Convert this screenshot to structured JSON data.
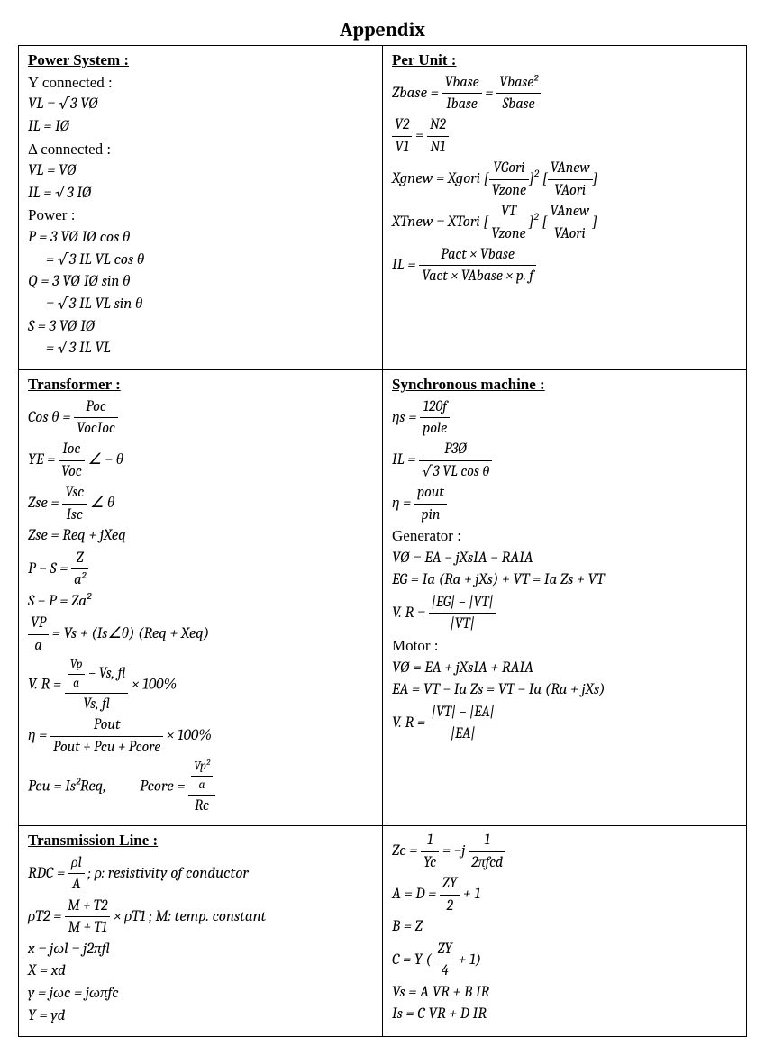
{
  "title": "Appendix",
  "sections": {
    "power_system": {
      "heading": "Power System :",
      "y_label": "Y connected :",
      "y_vl": "VL = √3 VØ",
      "y_il": "IL = IØ",
      "d_label": "Δ connected :",
      "d_vl": "VL  = VØ",
      "d_il": "IL = √3 IØ",
      "power_label": "Power :",
      "p1": "P = 3 VØ IØ  cos θ",
      "p2": "= √3 IL VL cos θ",
      "q1": "Q = 3 VØ IØ  sin θ",
      "q2": "= √3 IL VL sin θ",
      "s1": "S = 3 VØ IØ",
      "s2": "= √3 IL VL"
    },
    "per_unit": {
      "heading": "Per Unit :",
      "zbase_l": "Zbase =",
      "zb_n1": "Vbase",
      "zb_d1": "Ibase",
      "zb_n2": "Vbase²",
      "zb_d2": "Sbase",
      "v2v1_l": "",
      "v2": "V2",
      "v1": "V1",
      "n2": "N2",
      "n1": "N1",
      "xg_l": "Xgnew = Xgori",
      "xg_b1n": "VGori",
      "xg_b1d": "Vzone",
      "xg_b2n": "VAnew",
      "xg_b2d": "VAori",
      "xt_l": "XTnew = XTori",
      "xt_b1n": "VT",
      "xt_b1d": "Vzone",
      "xt_b2n": "VAnew",
      "xt_b2d": "VAori",
      "il_l": "IL =",
      "il_n": "Pact  × Vbase",
      "il_d": "Vact  × VAbase  × p. f"
    },
    "transformer": {
      "heading": "Transformer :",
      "cos_l": "Cos θ =",
      "cos_n": "Poc",
      "cos_d": "VocIoc",
      "ye_l": "YE =",
      "ye_n": "Ioc",
      "ye_d": "Voc",
      "ye_tail": "∠ − θ",
      "zse_l": "Zse =",
      "zse_n": "Vsc",
      "zse_d": "Isc",
      "zse_tail": "∠ θ",
      "zse2": "Zse = Req + jXeq",
      "ps_l": "P − S =",
      "ps_n": "Z",
      "ps_d": "a²",
      "sp": "S − P = Za²",
      "vpa_l": "",
      "vpa_n": "VP",
      "vpa_d": "a",
      "vpa_r": "= Vs + (Is∠θ) (Req + Xeq)",
      "vr_l": "V. R =",
      "vr_n1": "Vp",
      "vr_na": "a",
      "vr_minus": " − Vs, fl",
      "vr_d": "Vs, fl",
      "vr_tail": " × 100%",
      "eta_l": "η =",
      "eta_n": "Pout",
      "eta_d": "Pout + Pcu + Pcore",
      "eta_tail": " × 100%",
      "pcu": "Pcu = Is²Req,",
      "pcore_l": "Pcore =",
      "pcore_nn": "Vp²",
      "pcore_nd": "a",
      "pcore_d": "Rc"
    },
    "sync": {
      "heading": "Synchronous machine :",
      "ns_l": "ηs =",
      "ns_n": "120f",
      "ns_d": "pole",
      "il_l": "IL =",
      "il_n": "P3Ø",
      "il_d": "√3 VL cos θ",
      "eta_l": "η =",
      "eta_n": "pout",
      "eta_d": "pin",
      "gen_label": "Generator :",
      "g1": "VØ = EA − jXsIA − RAIA",
      "g2": "EG = Ia (Ra + jXs) + VT = Ia Zs + VT",
      "gvr_l": "V. R =",
      "gvr_n": "|EG| − |VT|",
      "gvr_d": "|VT|",
      "mot_label": "Motor :",
      "m1": "VØ = EA + jXsIA + RAIA",
      "m2": "EA = VT − Ia Zs = VT − Ia (Ra + jXs)",
      "mvr_l": "V. R =",
      "mvr_n": "|VT| − |EA|",
      "mvr_d": "|EA|"
    },
    "tl": {
      "heading": "Transmission Line :",
      "rdc_l": "RDC =",
      "rdc_n": "ρl",
      "rdc_d": "A",
      "rdc_tail": " ; ρ: resistivity of conductor",
      "pt2_l": "ρT2 =",
      "pt2_n": "M + T2",
      "pt2_d": "M + T1",
      "pt2_tail": " × ρT1 ; M: temp. constant",
      "x1": "x = jωl = j2πfl",
      "x2": "X = xd",
      "y1": "y = jωc = jωπfc",
      "y2": "Y = yd"
    },
    "tl_r": {
      "zc_l": "Zc =",
      "zc_n1": "1",
      "zc_d1": "Yc",
      "zc_mid": " = −j",
      "zc_n2": "1",
      "zc_d2": "2πfcd",
      "ad_l": "A = D =",
      "ad_n": "ZY",
      "ad_d": "2",
      "ad_tail": " + 1",
      "b": "B = Z",
      "c_l": "C = Y (",
      "c_n": "ZY",
      "c_d": "4",
      "c_tail": " + 1)",
      "vs": "Vs = A VR + B IR",
      "is": "Is = C VR + D IR"
    }
  }
}
